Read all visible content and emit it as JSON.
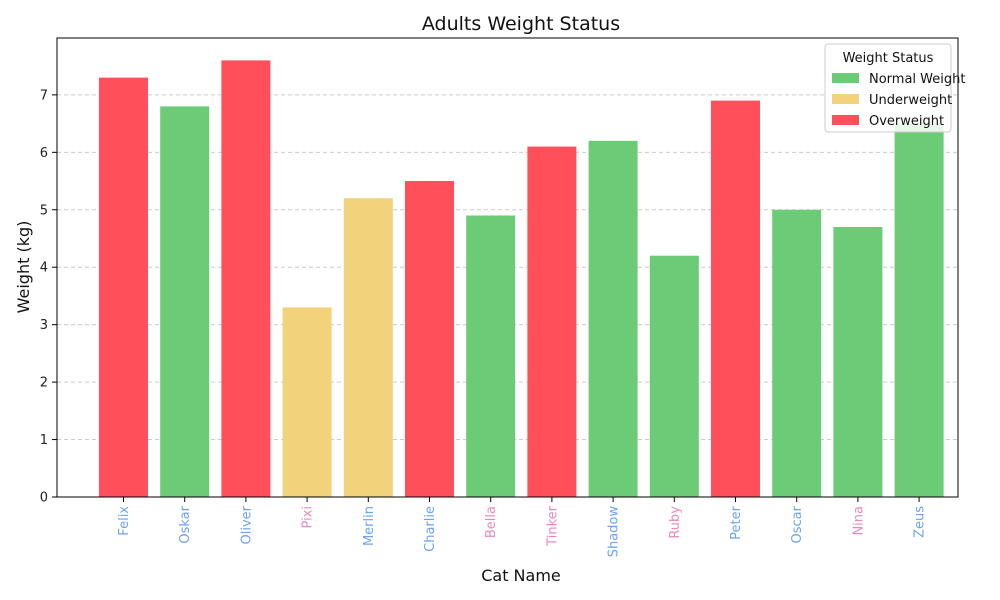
{
  "chart_data": {
    "type": "bar",
    "title": "Adults Weight Status",
    "xlabel": "Cat Name",
    "ylabel": "Weight (kg)",
    "ylim": [
      0,
      8
    ],
    "yticks": [
      0,
      1,
      2,
      3,
      4,
      5,
      6,
      7
    ],
    "grid": "y-dashed",
    "legend": {
      "title": "Weight Status",
      "placement": "top-right",
      "entries": [
        {
          "label": "Normal Weight",
          "color": "#6CCB76"
        },
        {
          "label": "Underweight",
          "color": "#F2D27A"
        },
        {
          "label": "Overweight",
          "color": "#FF4F5A"
        }
      ]
    },
    "bars": [
      {
        "name": "Felix",
        "value": 7.3,
        "status": "Overweight",
        "label_color": "#6BA3F0"
      },
      {
        "name": "Oskar",
        "value": 6.8,
        "status": "Normal Weight",
        "label_color": "#6BA3F0"
      },
      {
        "name": "Oliver",
        "value": 7.6,
        "status": "Overweight",
        "label_color": "#6BA3F0"
      },
      {
        "name": "Pixi",
        "value": 3.3,
        "status": "Underweight",
        "label_color": "#EA88BE"
      },
      {
        "name": "Merlin",
        "value": 5.2,
        "status": "Underweight",
        "label_color": "#6BA3F0"
      },
      {
        "name": "Charlie",
        "value": 5.5,
        "status": "Overweight",
        "label_color": "#6BA3F0"
      },
      {
        "name": "Bella",
        "value": 4.9,
        "status": "Normal Weight",
        "label_color": "#EA88BE"
      },
      {
        "name": "Tinker",
        "value": 6.1,
        "status": "Overweight",
        "label_color": "#EA88BE"
      },
      {
        "name": "Shadow",
        "value": 6.2,
        "status": "Normal Weight",
        "label_color": "#6BA3F0"
      },
      {
        "name": "Ruby",
        "value": 4.2,
        "status": "Normal Weight",
        "label_color": "#EA88BE"
      },
      {
        "name": "Peter",
        "value": 6.9,
        "status": "Overweight",
        "label_color": "#6BA3F0"
      },
      {
        "name": "Oscar",
        "value": 5.0,
        "status": "Normal Weight",
        "label_color": "#6BA3F0"
      },
      {
        "name": "Nina",
        "value": 4.7,
        "status": "Normal Weight",
        "label_color": "#EA88BE"
      },
      {
        "name": "Zeus",
        "value": 6.5,
        "status": "Normal Weight",
        "label_color": "#6BA3F0"
      }
    ]
  }
}
